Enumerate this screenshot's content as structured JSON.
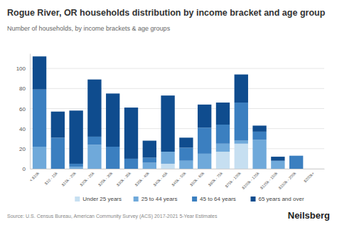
{
  "chart_data": {
    "type": "bar",
    "title": "Rogue River, OR households distribution by income bracket and age group",
    "subtitle": "Number of households, by income brackets & age groups",
    "source": "Source: U.S. Census Bureau, American Community Survey (ACS) 2017-2021 5-Year Estimates",
    "brand": "Neilsberg",
    "categories": [
      "< $10k",
      "$10 - 15k",
      "$15k - 20k",
      "$20k - 25k",
      "$25k - 30k",
      "$30k - 35k",
      "$35k - 40k",
      "$40k - 45k",
      "$45k - 50k",
      "$50k - 60k",
      "$60k - 75k",
      "$75k - 100k",
      "$100k - 125k",
      "$125k - 150k",
      "$150k - 200k",
      "$200k+"
    ],
    "series": [
      {
        "name": "Under 25 years",
        "color": "#c6dff1",
        "values": [
          0,
          0,
          0,
          0,
          0,
          0,
          0,
          5,
          0,
          0,
          17,
          25,
          0,
          0,
          0,
          0
        ]
      },
      {
        "name": "25 to 44 years",
        "color": "#6fa9da",
        "values": [
          22,
          0,
          2,
          24,
          0,
          0,
          6,
          12,
          8,
          15,
          8,
          3,
          29,
          8,
          0,
          0
        ]
      },
      {
        "name": "45 to 64 years",
        "color": "#3b7fc0",
        "values": [
          57,
          31,
          3,
          8,
          22,
          10,
          5,
          0,
          13,
          26,
          19,
          38,
          8,
          0,
          13,
          0
        ]
      },
      {
        "name": "65 years and over",
        "color": "#0f4c8e",
        "values": [
          33,
          26,
          53,
          57,
          53,
          51,
          17,
          56,
          10,
          23,
          22,
          28,
          6,
          4,
          0,
          0
        ]
      }
    ],
    "stacked": true,
    "ylim": [
      0,
      115
    ],
    "yticks": [
      0,
      20,
      40,
      60,
      80,
      100
    ],
    "grid": true,
    "legend": "bottom"
  }
}
